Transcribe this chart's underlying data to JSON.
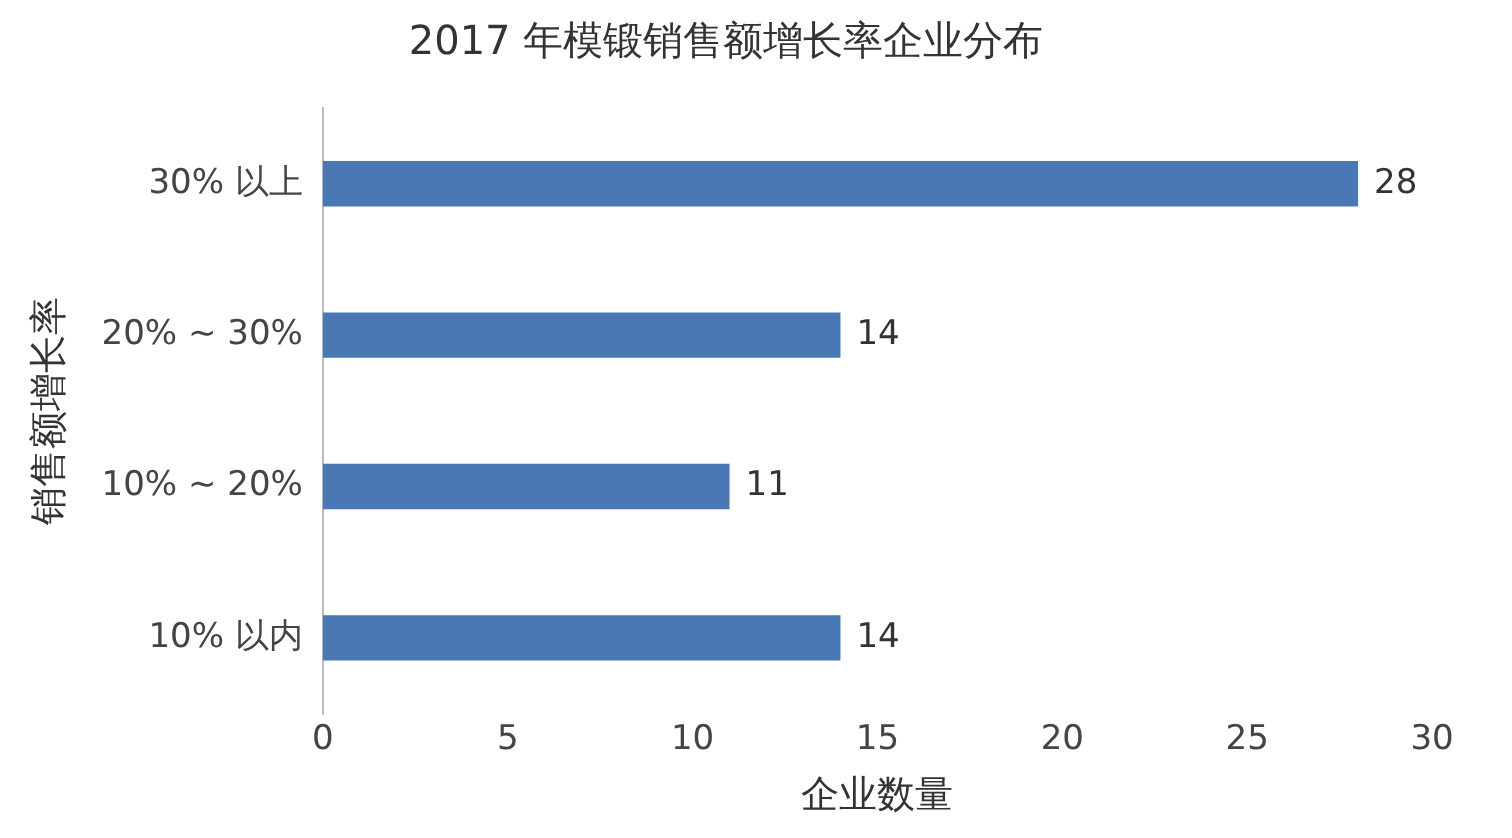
{
  "chart_data": {
    "type": "bar",
    "orientation": "horizontal",
    "title": "2017 年模锻销售额增长率企业分布",
    "xlabel": "企业数量",
    "ylabel": "销售额增长率",
    "categories": [
      "30% 以上",
      "20% ~ 30%",
      "10% ~ 20%",
      "10% 以内"
    ],
    "values": [
      28,
      14,
      11,
      14
    ],
    "color": "#4a78b4",
    "xlim": [
      0,
      30
    ],
    "xticks": [
      0,
      5,
      10,
      15,
      20,
      25,
      30
    ],
    "grid": false,
    "legend": false,
    "data_labels": true
  }
}
